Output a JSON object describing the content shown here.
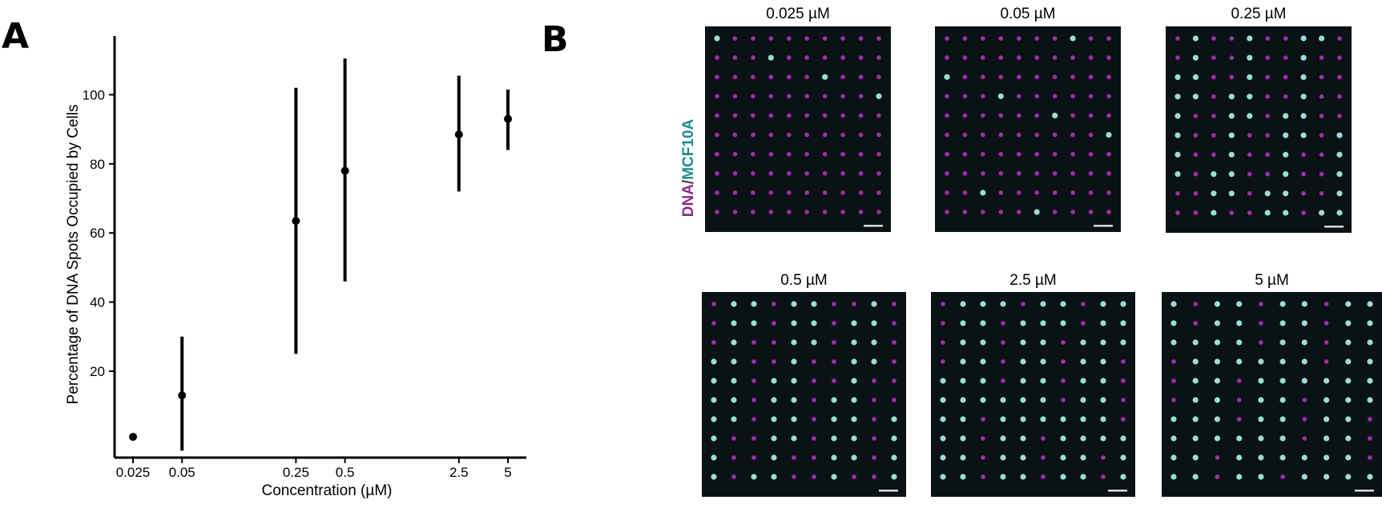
{
  "panels": {
    "a": "A",
    "b": "B"
  },
  "chart_data": {
    "type": "scatter",
    "error_bars": true,
    "x_scale": "log",
    "x": [
      0.025,
      0.05,
      0.25,
      0.5,
      2.5,
      5
    ],
    "tick_labels": [
      "0.025",
      "0.05",
      "0.25",
      "0.5",
      "2.5",
      "5"
    ],
    "y": [
      1,
      13,
      63.5,
      78,
      88.5,
      93
    ],
    "y_low": [
      0,
      -3,
      25,
      46,
      72,
      84
    ],
    "y_high": [
      2,
      30,
      102,
      110.5,
      105.5,
      101.5
    ],
    "xlabel": "Concentration (µM)",
    "ylabel": "Percentage of DNA Spots Occupied by Cells",
    "yticks": [
      20,
      40,
      60,
      80,
      100
    ],
    "ylim": [
      -5,
      117
    ],
    "grid": false,
    "marker_color": "#000000"
  },
  "micrographs": {
    "channel_label": {
      "dna": "DNA",
      "sep": "/",
      "cells": "MCF10A"
    },
    "colors": {
      "background": "#0b1216",
      "dna": "#b62fc0",
      "cells": "#9fe9e6",
      "scale_bar": "#d9d9d9"
    },
    "images": [
      {
        "title": "0.025 µM",
        "occupancy": 0.02
      },
      {
        "title": "0.05 µM",
        "occupancy": 0.13
      },
      {
        "title": "0.25 µM",
        "occupancy": 0.64
      },
      {
        "title": "0.5 µM",
        "occupancy": 0.78
      },
      {
        "title": "2.5 µM",
        "occupancy": 0.89
      },
      {
        "title": "5 µM",
        "occupancy": 0.93
      }
    ]
  }
}
